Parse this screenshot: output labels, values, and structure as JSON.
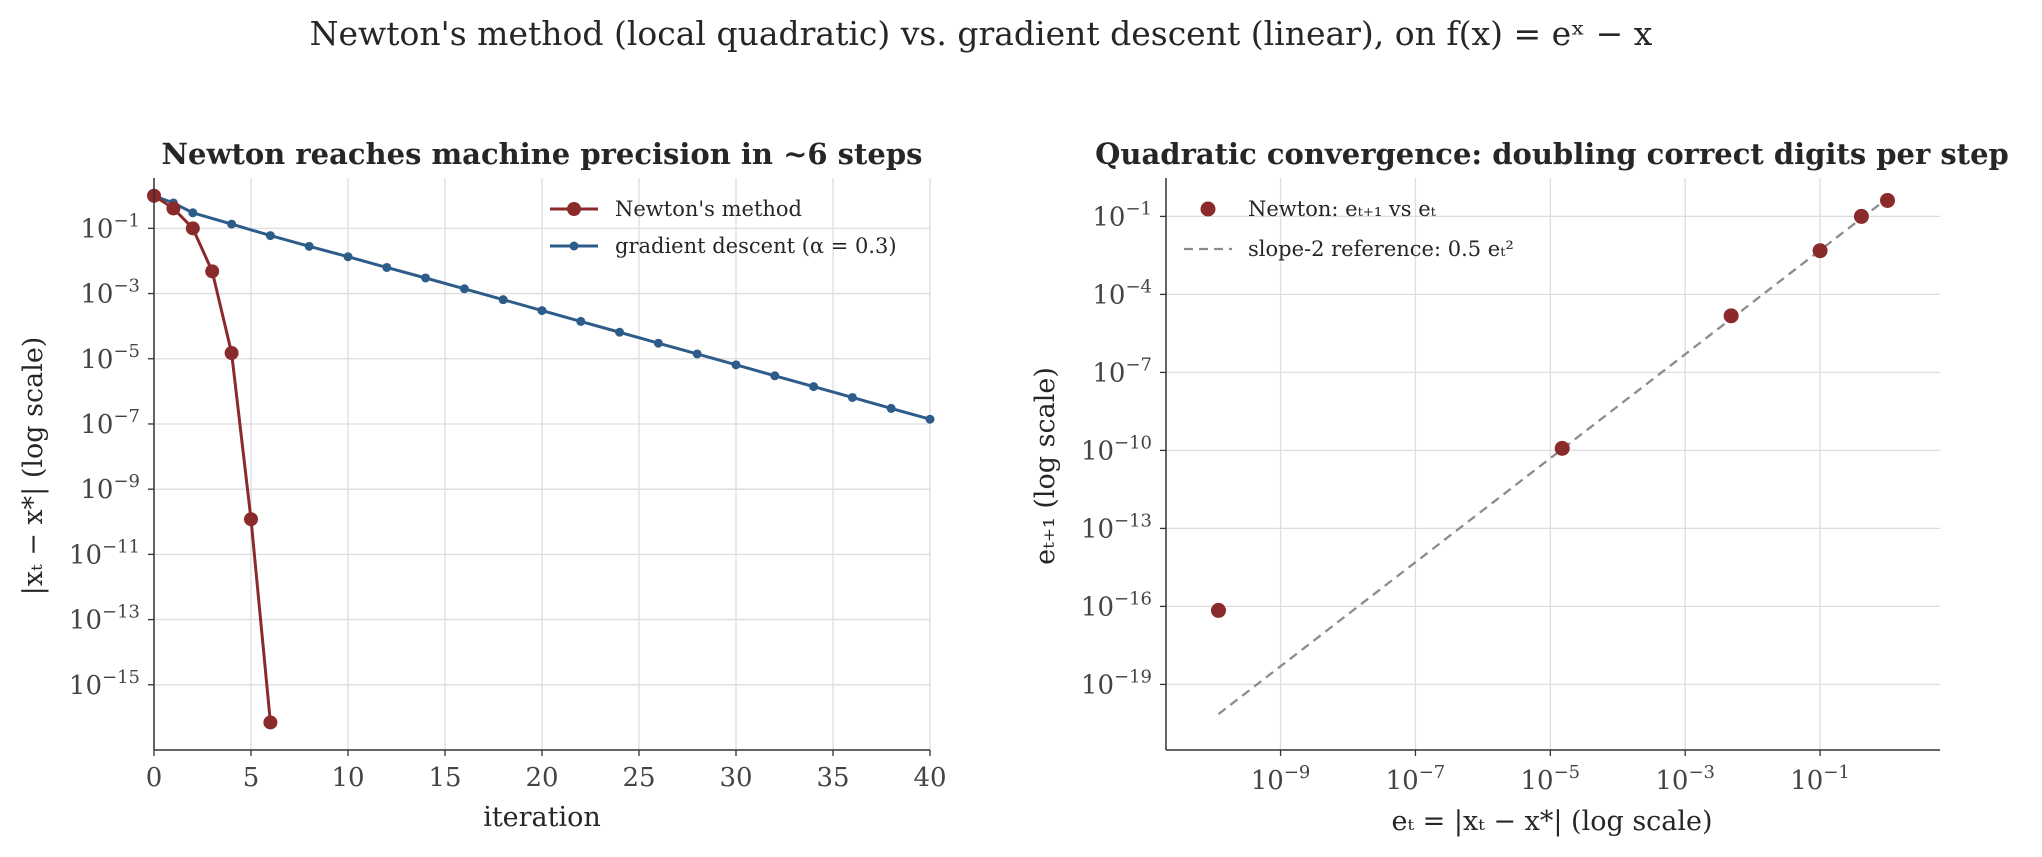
{
  "figure": {
    "suptitle": "Newton's method (local quadratic) vs. gradient descent (linear), on f(x) = eˣ − x"
  },
  "colors": {
    "newton": "#8b2a2a",
    "gd": "#2e5c8a",
    "reference": "#8c8c8c",
    "grid": "#dddddd"
  },
  "chart_data": [
    {
      "type": "line",
      "title": "Newton reaches machine precision in ~6 steps",
      "xlabel": "iteration",
      "ylabel": "|xₜ − x*| (log scale)",
      "xscale": "linear",
      "yscale": "log",
      "xlim": [
        0,
        40
      ],
      "ylim": [
        1e-17,
        3.5
      ],
      "xticks": [
        0,
        5,
        10,
        15,
        20,
        25,
        30,
        35,
        40
      ],
      "xtick_labels": [
        "0",
        "5",
        "10",
        "15",
        "20",
        "25",
        "30",
        "35",
        "40"
      ],
      "yticks": [
        0.1,
        0.001,
        1e-05,
        1e-07,
        1e-09,
        1e-11,
        1e-13,
        1e-15
      ],
      "ytick_labels": [
        [
          "10",
          "−1"
        ],
        [
          "10",
          "−3"
        ],
        [
          "10",
          "−5"
        ],
        [
          "10",
          "−7"
        ],
        [
          "10",
          "−9"
        ],
        [
          "10",
          "−11"
        ],
        [
          "10",
          "−13"
        ],
        [
          "10",
          "−15"
        ]
      ],
      "grid": true,
      "legend_position": "top-right",
      "series": [
        {
          "name": "Newton's method",
          "color": "#8b2a2a",
          "marker": "large-circle",
          "x": [
            0,
            1,
            2,
            3,
            4,
            5,
            6
          ],
          "y": [
            1.0,
            0.41,
            0.1,
            0.0048,
            1.5e-05,
            1.2e-10,
            7e-17
          ]
        },
        {
          "name": "gradient descent (α = 0.3)",
          "color": "#2e5c8a",
          "marker": "small-circle",
          "x": [
            0,
            1,
            2,
            4,
            6,
            8,
            10,
            12,
            14,
            16,
            18,
            20,
            22,
            24,
            26,
            28,
            30,
            32,
            34,
            36,
            38,
            40
          ],
          "y": [
            1.0,
            0.6,
            0.3,
            0.135,
            0.06,
            0.028,
            0.0135,
            0.0063,
            0.003,
            0.0014,
            0.00065,
            0.0003,
            0.00014,
            6.5e-05,
            3e-05,
            1.4e-05,
            6.5e-06,
            3e-06,
            1.4e-06,
            6.5e-07,
            3e-07,
            1.4e-07
          ]
        }
      ]
    },
    {
      "type": "scatter",
      "title": "Quadratic convergence: doubling correct digits per step",
      "xlabel": "eₜ = |xₜ − x*| (log scale)",
      "ylabel": "eₜ₊₁ (log scale)",
      "xscale": "log",
      "yscale": "log",
      "xlim": [
        2e-11,
        6
      ],
      "ylim": [
        3e-22,
        3
      ],
      "xticks": [
        1e-09,
        1e-07,
        1e-05,
        0.001,
        0.1
      ],
      "xtick_labels": [
        [
          "10",
          "−9"
        ],
        [
          "10",
          "−7"
        ],
        [
          "10",
          "−5"
        ],
        [
          "10",
          "−3"
        ],
        [
          "10",
          "−1"
        ]
      ],
      "yticks": [
        0.1,
        0.0001,
        1e-07,
        1e-10,
        1e-13,
        1e-16,
        1e-19
      ],
      "ytick_labels": [
        [
          "10",
          "−1"
        ],
        [
          "10",
          "−4"
        ],
        [
          "10",
          "−7"
        ],
        [
          "10",
          "−10"
        ],
        [
          "10",
          "−13"
        ],
        [
          "10",
          "−16"
        ],
        [
          "10",
          "−19"
        ]
      ],
      "grid": true,
      "legend_position": "top-left",
      "series": [
        {
          "name": "Newton: eₜ₊₁ vs eₜ",
          "color": "#8b2a2a",
          "marker": "circle",
          "x": [
            1.2e-10,
            1.5e-05,
            0.0048,
            0.1,
            0.41,
            1.0
          ],
          "y": [
            7e-17,
            1.2e-10,
            1.5e-05,
            0.0048,
            0.1,
            0.41
          ]
        },
        {
          "name": "slope-2 reference: 0.5 eₜ²",
          "color": "#8c8c8c",
          "style": "dashed",
          "coefficient": 0.5,
          "exponent": 2,
          "x_range": [
            1.2e-10,
            1.0
          ]
        }
      ]
    }
  ]
}
